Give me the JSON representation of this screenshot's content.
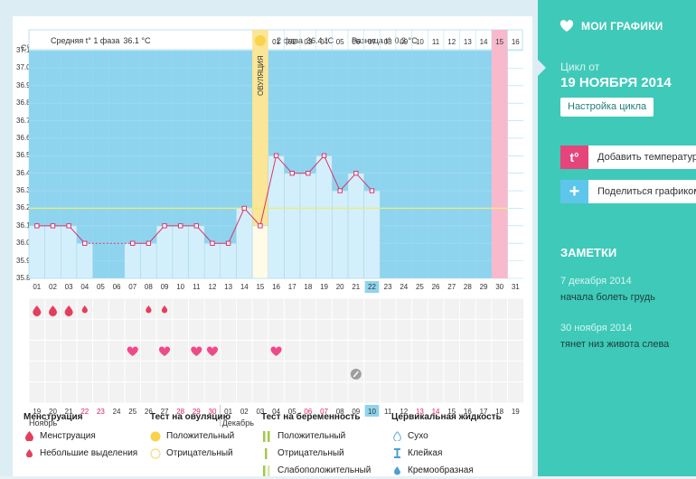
{
  "chart": {
    "unit_label": "С°",
    "phase1_label": "Средняя t° 1 фаза",
    "phase1_value": "36.1 °С",
    "phase2_label": "2 фаза",
    "phase2_value": "36.4 °С",
    "diff_label": "Разница t°",
    "diff_value": "0.3 °С",
    "ovulation_label": "ОВУЛЯЦИЯ",
    "month1": "Ноябрь",
    "month2": "Декабрь"
  },
  "chart_data": {
    "type": "line",
    "ylim": [
      35.8,
      37.1
    ],
    "yticks": [
      "37.1",
      "37.0",
      "36.9",
      "36.8",
      "36.7",
      "36.6",
      "36.5",
      "36.4",
      "36.3",
      "36.2",
      "36.1",
      "36.0",
      "35.9",
      "35.8"
    ],
    "cycle_days": [
      "01",
      "02",
      "03",
      "04",
      "05",
      "06",
      "07",
      "08",
      "09",
      "10",
      "11",
      "12",
      "13",
      "14",
      "15",
      "16",
      "17",
      "18",
      "19",
      "20",
      "21",
      "22",
      "23",
      "24",
      "25",
      "26",
      "27",
      "28",
      "29",
      "30",
      "31"
    ],
    "phase2_days": [
      "01",
      "02",
      "03",
      "04",
      "05",
      "06",
      "07",
      "08",
      "09",
      "10",
      "11",
      "12",
      "13",
      "14",
      "15",
      "16"
    ],
    "dates": [
      "19",
      "20",
      "21",
      "22",
      "23",
      "24",
      "25",
      "26",
      "27",
      "28",
      "29",
      "30",
      "01",
      "02",
      "03",
      "04",
      "05",
      "06",
      "07",
      "08",
      "09",
      "10",
      "11",
      "12",
      "13",
      "14",
      "15",
      "16",
      "17",
      "18",
      "19"
    ],
    "weekend_date_indices": [
      3,
      4,
      9,
      10,
      11,
      17,
      18,
      24,
      25
    ],
    "temperatures": [
      36.1,
      36.1,
      36.1,
      36.0,
      null,
      null,
      36.0,
      36.0,
      36.1,
      36.1,
      36.1,
      36.0,
      36.0,
      36.2,
      36.1,
      36.5,
      36.4,
      36.4,
      36.5,
      36.3,
      36.4,
      36.3
    ],
    "coverline": 36.2,
    "ovulation_day": 15,
    "today_day": 22,
    "cycle_end_day": 30,
    "menstruation": {
      "1": "heavy",
      "2": "heavy",
      "3": "heavy",
      "4": "light",
      "8": "light",
      "9": "light"
    },
    "ovulation_test_hearts": [
      7,
      9,
      11,
      12,
      16
    ],
    "note_marker_day": 21
  },
  "legend": {
    "menstruation": {
      "title": "Менструация",
      "items": [
        "Менструация",
        "Небольшие выделения"
      ]
    },
    "ovulation_test": {
      "title": "Тест на овуляцию",
      "items": [
        "Положительный",
        "Отрицательный"
      ]
    },
    "pregnancy_test": {
      "title": "Тест на беременность",
      "items": [
        "Положительный",
        "Отрицательный",
        "Слабоположительный"
      ]
    },
    "cervical": {
      "title": "Цервикальная жидкость",
      "items": [
        "Сухо",
        "Клейкая",
        "Кремообразная"
      ]
    }
  },
  "sidebar": {
    "nav_label": "МОИ ГРАФИКИ",
    "cycle_from": "Цикл от",
    "cycle_date": "19 НОЯБРЯ 2014",
    "cycle_settings": "Настройка цикла",
    "add_temp": "Добавить температуру",
    "share": "Поделиться графиком",
    "notes_title": "ЗАМЕТКИ",
    "notes": [
      {
        "date": "7 декабря 2014",
        "text": "начала болеть грудь"
      },
      {
        "date": "30 ноября 2014",
        "text": "тянет низ живота слева"
      }
    ]
  },
  "colors": {
    "accent": "#3fc9b9",
    "chart_bg": "#8fd4ef",
    "bar": "#d4effc",
    "line": "#d8336b",
    "ovulation": "#fbe596",
    "cycle_end": "#f8b9cc",
    "coverline": "#e9ec80"
  }
}
